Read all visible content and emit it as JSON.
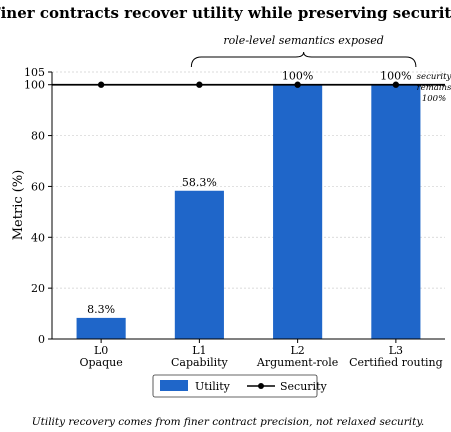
{
  "chart_data": {
    "type": "bar",
    "title": "Finer contracts recover utility while preserving security",
    "ylabel": "Metric (%)",
    "xlabel": "",
    "ylim": [
      0,
      105
    ],
    "yticks": [
      0,
      20,
      40,
      60,
      80,
      100,
      105
    ],
    "grid": true,
    "legend_position": "bottom-center",
    "categories": [
      {
        "level": "L0",
        "name": "Opaque"
      },
      {
        "level": "L1",
        "name": "Capability"
      },
      {
        "level": "L2",
        "name": "Argument-role"
      },
      {
        "level": "L3",
        "name": "Certified routing"
      }
    ],
    "series": [
      {
        "name": "Utility",
        "kind": "bar",
        "values": [
          8.3,
          58.3,
          100,
          100
        ],
        "labels": [
          "8.3%",
          "58.3%",
          "100%",
          "100%"
        ],
        "color": "#1f66c9"
      },
      {
        "name": "Security",
        "kind": "line",
        "values": [
          100,
          100,
          100,
          100
        ],
        "color": "#000000"
      }
    ],
    "annotations": {
      "bracket_label": "role-level semantics exposed",
      "bracket_span": [
        "L1",
        "L3"
      ],
      "security_note": [
        "security",
        "remains",
        "100%"
      ]
    },
    "caption": "Utility recovery comes from finer contract precision, not relaxed security."
  }
}
